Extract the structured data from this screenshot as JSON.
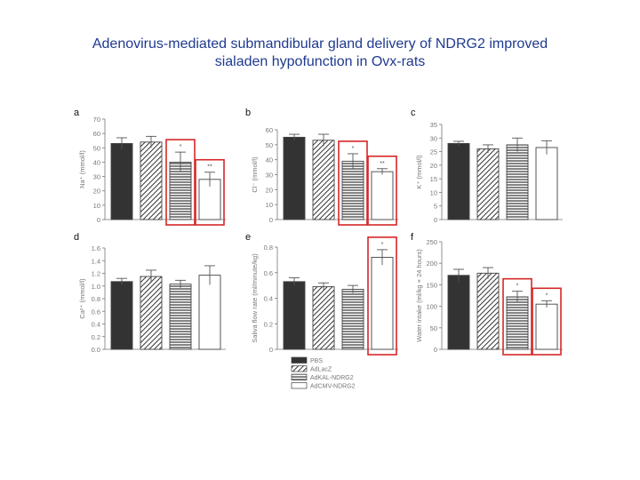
{
  "slide": {
    "title_line1": "Adenovirus-mediated submandibular gland delivery of NDRG2 improved",
    "title_line2": "sialaden hypofunction in Ovx-rats"
  },
  "colors": {
    "title": "#1f3a8f",
    "highlight_box": "#d62728",
    "bar_solid": "#333333",
    "bar_outline": "#444444"
  },
  "legend": {
    "items": [
      {
        "label": "PBS",
        "pattern": "solid"
      },
      {
        "label": "AdLacZ",
        "pattern": "diagonal"
      },
      {
        "label": "AdKAL-NDRG2",
        "pattern": "horizontal"
      },
      {
        "label": "AdCMV-NDRG2",
        "pattern": "white"
      }
    ]
  },
  "chart_data": [
    {
      "panel": "a",
      "type": "bar",
      "ylabel": "Na⁺ (mmol/l)",
      "ylim": [
        0,
        70
      ],
      "yticks": [
        0,
        10,
        20,
        30,
        40,
        50,
        60,
        70
      ],
      "categories": [
        "PBS",
        "AdLacZ",
        "AdKAL-NDRG2",
        "AdCMV-NDRG2"
      ],
      "values": [
        53,
        54,
        40,
        28
      ],
      "errors": [
        4,
        4,
        7,
        5
      ],
      "annotations": [
        "",
        "",
        "*",
        "**"
      ],
      "highlighted": [
        2,
        3
      ]
    },
    {
      "panel": "b",
      "type": "bar",
      "ylabel": "Cl⁻ (mmol/l)",
      "ylim": [
        0,
        60
      ],
      "yticks": [
        0,
        10,
        20,
        30,
        40,
        50,
        60
      ],
      "categories": [
        "PBS",
        "AdLacZ",
        "AdKAL-NDRG2",
        "AdCMV-NDRG2"
      ],
      "values": [
        55,
        53,
        39,
        32
      ],
      "errors": [
        2,
        4,
        5,
        2
      ],
      "annotations": [
        "",
        "",
        "*",
        "**"
      ],
      "highlighted": [
        2,
        3
      ]
    },
    {
      "panel": "c",
      "type": "bar",
      "ylabel": "K⁺ (mmol/l)",
      "ylim": [
        0,
        35
      ],
      "yticks": [
        0,
        5,
        10,
        15,
        20,
        25,
        30,
        35
      ],
      "categories": [
        "PBS",
        "AdLacZ",
        "AdKAL-NDRG2",
        "AdCMV-NDRG2"
      ],
      "values": [
        28,
        26,
        27.5,
        26.5
      ],
      "errors": [
        0.8,
        1.5,
        2.5,
        2.5
      ],
      "annotations": [
        "",
        "",
        "",
        ""
      ],
      "highlighted": []
    },
    {
      "panel": "d",
      "type": "bar",
      "ylabel": "Ca²⁺ (mmol/l)",
      "ylim": [
        0,
        1.6
      ],
      "yticks": [
        "0.0",
        "0.2",
        "0.4",
        "0.6",
        "0.8",
        "1.0",
        "1.2",
        "1.4",
        "1.6"
      ],
      "categories": [
        "PBS",
        "AdLacZ",
        "AdKAL-NDRG2",
        "AdCMV-NDRG2"
      ],
      "values": [
        1.07,
        1.15,
        1.03,
        1.17
      ],
      "errors": [
        0.05,
        0.1,
        0.06,
        0.15
      ],
      "annotations": [
        "",
        "",
        "",
        ""
      ],
      "highlighted": []
    },
    {
      "panel": "e",
      "type": "bar",
      "ylabel": "Saliva flow rate (ml/minute/kg)",
      "ylim": [
        0,
        0.8
      ],
      "yticks": [
        "0",
        "0.2",
        "0.4",
        "0.6",
        "0.8"
      ],
      "categories": [
        "PBS",
        "AdLacZ",
        "AdKAL-NDRG2",
        "AdCMV-NDRG2"
      ],
      "values": [
        0.53,
        0.49,
        0.47,
        0.72
      ],
      "errors": [
        0.03,
        0.03,
        0.03,
        0.06
      ],
      "annotations": [
        "",
        "",
        "",
        "*"
      ],
      "highlighted": [
        3
      ]
    },
    {
      "panel": "f",
      "type": "bar",
      "ylabel": "Water intake (ml/kg × 24 hours)",
      "ylim": [
        0,
        250
      ],
      "yticks": [
        0,
        50,
        100,
        150,
        200,
        250
      ],
      "categories": [
        "PBS",
        "AdLacZ",
        "AdKAL-NDRG2",
        "AdCMV-NDRG2"
      ],
      "values": [
        172,
        177,
        122,
        105
      ],
      "errors": [
        14,
        13,
        13,
        8
      ],
      "annotations": [
        "",
        "",
        "*",
        "*"
      ],
      "highlighted": [
        2,
        3
      ]
    }
  ]
}
